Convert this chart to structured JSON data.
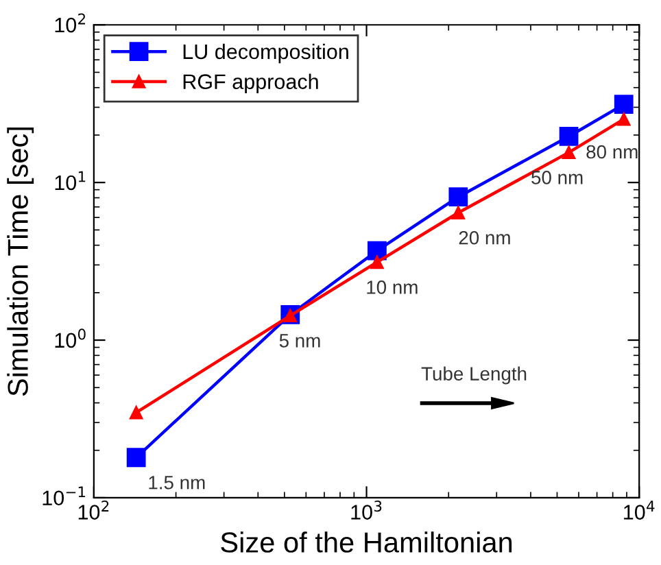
{
  "chart_data": {
    "type": "line",
    "xlabel": "Size of the Hamiltonian",
    "ylabel": "Simulation Time [sec]",
    "log": "xy",
    "x": [
      143,
      525,
      1093,
      2170,
      5520,
      8780
    ],
    "series": [
      {
        "name": "LU decomposition",
        "color": "#0000ff",
        "marker": "square",
        "values": [
          0.18,
          1.45,
          3.69,
          8.1,
          19.6,
          31.3
        ]
      },
      {
        "name": "RGF approach",
        "color": "#ff0000",
        "marker": "triangle",
        "values": [
          0.347,
          1.43,
          3.12,
          6.43,
          15.5,
          25.2
        ]
      }
    ],
    "xlim": [
      100,
      10000
    ],
    "ylim": [
      0.1,
      100
    ],
    "xticks": [
      {
        "value": 100,
        "label": "10$^{2}$"
      },
      {
        "value": 1000,
        "label": "10$^{3}$"
      },
      {
        "value": 10000,
        "label": "10$^{4}$"
      }
    ],
    "yticks": [
      {
        "value": 0.1,
        "label": "10$^{−1}$"
      },
      {
        "value": 1,
        "label": "10$^{0}$"
      },
      {
        "value": 10,
        "label": "10$^{1}$"
      },
      {
        "value": 100,
        "label": "10$^{2}$"
      }
    ],
    "legend": "top left",
    "grid": false,
    "line_style": "solid",
    "annotations": [
      {
        "text": "1.5 nm",
        "x": 143,
        "y": 0.18
      },
      {
        "text": "5 nm",
        "x": 525,
        "y": 1.43
      },
      {
        "text": "10 nm",
        "x": 1093,
        "y": 3.12
      },
      {
        "text": "20 nm",
        "x": 2170,
        "y": 6.43
      },
      {
        "text": "50 nm",
        "x": 5520,
        "y": 15.5
      },
      {
        "text": "80 nm",
        "x": 8780,
        "y": 25.2
      },
      "Tube Length"
    ]
  }
}
